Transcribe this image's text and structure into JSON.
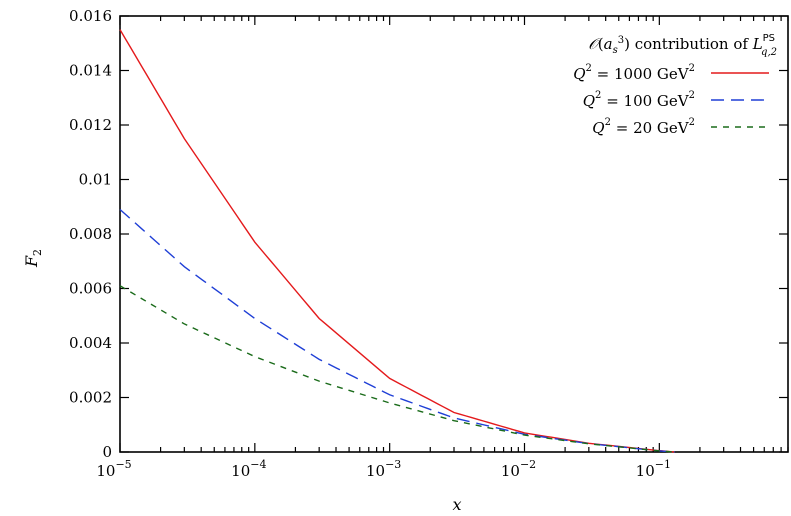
{
  "chart_data": {
    "type": "line",
    "xlabel": "x",
    "ylabel": "F2",
    "xscale": "log",
    "xlim": [
      1e-05,
      0.9
    ],
    "ylim": [
      0,
      0.016
    ],
    "grid": false,
    "legend_position": "top-right",
    "legend_title": "O(a_s^3) contribution of L_{q,2}^{PS}",
    "x_ticks": [
      {
        "value": 1e-05,
        "base": "10",
        "exp": "−5"
      },
      {
        "value": 0.0001,
        "base": "10",
        "exp": "−4"
      },
      {
        "value": 0.001,
        "base": "10",
        "exp": "−3"
      },
      {
        "value": 0.01,
        "base": "10",
        "exp": "−2"
      },
      {
        "value": 0.1,
        "base": "10",
        "exp": "−1"
      }
    ],
    "y_ticks": [
      "0",
      "0.002",
      "0.004",
      "0.006",
      "0.008",
      "0.01",
      "0.012",
      "0.014",
      "0.016"
    ],
    "series": [
      {
        "name": "Q^2 = 1000 GeV^2",
        "label_value": "1000",
        "color": "#e41a1c",
        "dash": "solid",
        "x": [
          1e-05,
          3e-05,
          0.0001,
          0.0003,
          0.001,
          0.003,
          0.01,
          0.03,
          0.1,
          0.13
        ],
        "y": [
          0.0155,
          0.0115,
          0.0077,
          0.0049,
          0.0027,
          0.00145,
          0.0007,
          0.00032,
          5e-05,
          0.0
        ]
      },
      {
        "name": "Q^2 = 100 GeV^2",
        "label_value": "100",
        "color": "#1f3fd6",
        "dash": "long",
        "x": [
          1e-05,
          3e-05,
          0.0001,
          0.0003,
          0.001,
          0.003,
          0.01,
          0.03,
          0.1,
          0.13
        ],
        "y": [
          0.0089,
          0.0068,
          0.0049,
          0.0034,
          0.0021,
          0.00125,
          0.00065,
          0.00031,
          4e-05,
          0.0
        ]
      },
      {
        "name": "Q^2 = 20 GeV^2",
        "label_value": "20",
        "color": "#1a6b1a",
        "dash": "short",
        "x": [
          1e-05,
          3e-05,
          0.0001,
          0.0003,
          0.001,
          0.003,
          0.01,
          0.03,
          0.1,
          0.13
        ],
        "y": [
          0.0061,
          0.0047,
          0.0035,
          0.0026,
          0.0018,
          0.00115,
          0.00062,
          0.0003,
          4e-05,
          0.0
        ]
      }
    ]
  }
}
